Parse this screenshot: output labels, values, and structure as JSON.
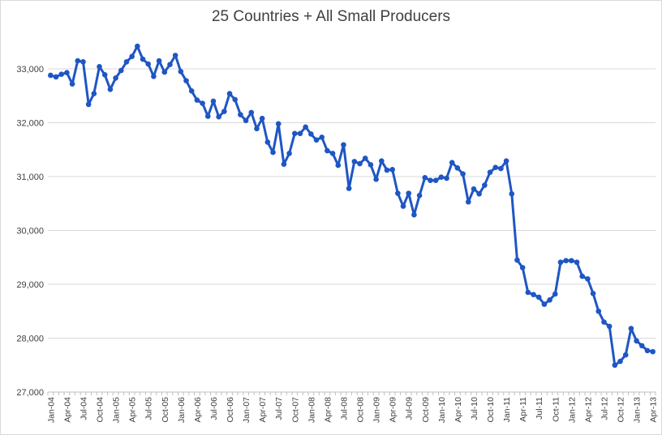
{
  "chart_data": {
    "type": "line",
    "title": "25 Countries + All Small Producers",
    "xlabel": "",
    "ylabel": "",
    "ylim": [
      27000,
      33600
    ],
    "y_ticks": [
      27000,
      28000,
      29000,
      30000,
      31000,
      32000,
      33000
    ],
    "y_tick_labels": [
      "27,000",
      "28,000",
      "29,000",
      "30,000",
      "31,000",
      "32,000",
      "33,000"
    ],
    "x_tick_labels": [
      "Jan-04",
      "Apr-04",
      "Jul-04",
      "Oct-04",
      "Jan-05",
      "Apr-05",
      "Jul-05",
      "Oct-05",
      "Jan-06",
      "Apr-06",
      "Jul-06",
      "Oct-06",
      "Jan-07",
      "Apr-07",
      "Jul-07",
      "Oct-07",
      "Jan-08",
      "Apr-08",
      "Jul-08",
      "Oct-08",
      "Jan-09",
      "Apr-09",
      "Jul-09",
      "Oct-09",
      "Jan-10",
      "Apr-10",
      "Jul-10",
      "Oct-10",
      "Jan-11",
      "Apr-11",
      "Jul-11",
      "Oct-11",
      "Jan-12",
      "Apr-12",
      "Jul-12",
      "Oct-12",
      "Jan-13",
      "Apr-13"
    ],
    "x_tick_every_months": 3,
    "grid": "horizontal",
    "legend": "none",
    "series_color": "#1f56c4",
    "series": [
      {
        "values": [
          32880,
          32850,
          32900,
          32930,
          32720,
          33150,
          33130,
          32340,
          32540,
          33040,
          32890,
          32620,
          32830,
          32970,
          33130,
          33230,
          33420,
          33180,
          33090,
          32860,
          33150,
          32940,
          33080,
          33250,
          32950,
          32780,
          32590,
          32420,
          32360,
          32120,
          32400,
          32110,
          32210,
          32540,
          32430,
          32150,
          32040,
          32190,
          31890,
          32080,
          31640,
          31450,
          31980,
          31230,
          31430,
          31800,
          31800,
          31920,
          31790,
          31680,
          31730,
          31480,
          31430,
          31210,
          31590,
          30780,
          31280,
          31240,
          31340,
          31220,
          30950,
          31290,
          31120,
          31130,
          30690,
          30450,
          30690,
          30290,
          30650,
          30980,
          30930,
          30930,
          30990,
          30970,
          31260,
          31160,
          31050,
          30530,
          30770,
          30680,
          30840,
          31080,
          31170,
          31150,
          31290,
          30680,
          29450,
          29310,
          28850,
          28810,
          28760,
          28630,
          28710,
          28820,
          29410,
          29440,
          29440,
          29410,
          29150,
          29100,
          28830,
          28500,
          28300,
          28220,
          27500,
          27570,
          27690,
          28180,
          27950,
          27860,
          27770,
          27750
        ]
      }
    ]
  }
}
